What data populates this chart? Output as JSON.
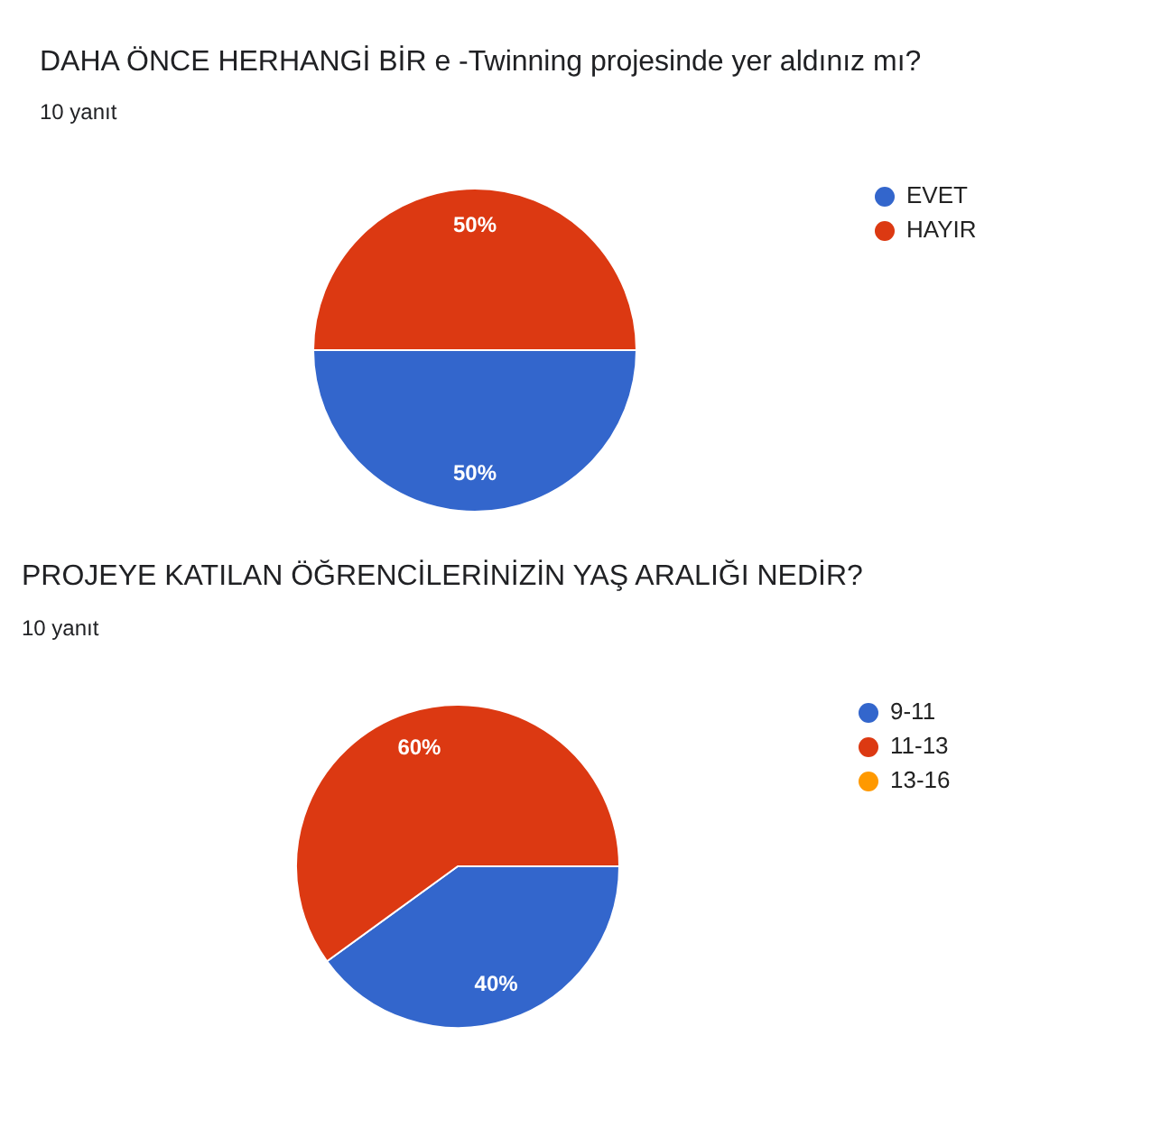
{
  "chart_data": [
    {
      "type": "pie",
      "title": "DAHA ÖNCE HERHANGİ BİR e -Twinning projesinde yer aldınız mı?",
      "subtitle": "10 yanıt",
      "categories": [
        "EVET",
        "HAYIR"
      ],
      "values": [
        50,
        50
      ],
      "colors": [
        "#3366cc",
        "#dc3912"
      ],
      "value_labels": [
        "50%",
        "50%"
      ],
      "legend": "top right"
    },
    {
      "type": "pie",
      "title": "PROJEYE KATILAN ÖĞRENCİLERİNİZİN YAŞ ARALIĞI NEDİR?",
      "subtitle": "10 yanıt",
      "categories": [
        "9-11",
        "11-13",
        "13-16"
      ],
      "values": [
        40,
        60,
        0
      ],
      "colors": [
        "#3366cc",
        "#dc3912",
        "#ff9900"
      ],
      "value_labels": [
        "40%",
        "60%",
        null
      ],
      "legend": "top right"
    }
  ]
}
